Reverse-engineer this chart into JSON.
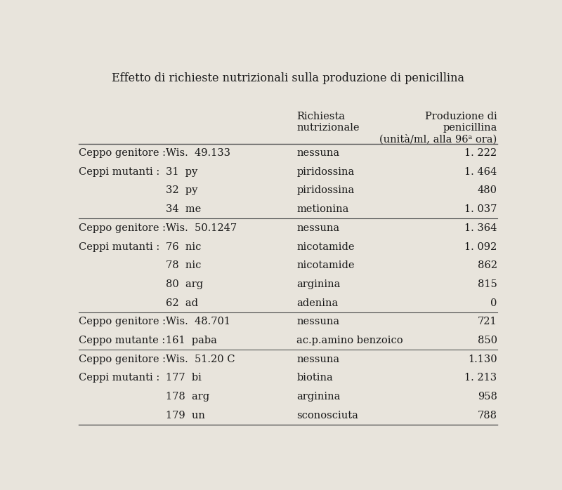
{
  "title": "Effetto di richieste nutrizionali sulla produzione di penicillina",
  "col_headers_c2": "Richiesta\nnutrizionale",
  "col_headers_c3": "Produzione di\npenicillina\n(unità/ml, alla 96ᵃ ora)",
  "rows": [
    {
      "col0": "Ceppo genitore :",
      "col1": "Wis.  49.133",
      "col2": "nessuna",
      "col3": "1. 222"
    },
    {
      "col0": "Ceppi mutanti :",
      "col1": "31  py",
      "col2": "piridossina",
      "col3": "1. 464"
    },
    {
      "col0": "",
      "col1": "32  py",
      "col2": "piridossina",
      "col3": "480"
    },
    {
      "col0": "",
      "col1": "34  me",
      "col2": "metionina",
      "col3": "1. 037"
    },
    {
      "col0": "Ceppo genitore :",
      "col1": "Wis.  50.1247",
      "col2": "nessuna",
      "col3": "1. 364"
    },
    {
      "col0": "Ceppi mutanti :",
      "col1": "76  nic",
      "col2": "nicotamide",
      "col3": "1. 092"
    },
    {
      "col0": "",
      "col1": "78  nic",
      "col2": "nicotamide",
      "col3": "862"
    },
    {
      "col0": "",
      "col1": "80  arg",
      "col2": "arginina",
      "col3": "815"
    },
    {
      "col0": "",
      "col1": "62  ad",
      "col2": "adenina",
      "col3": "0"
    },
    {
      "col0": "Ceppo genitore :",
      "col1": "Wis.  48.701",
      "col2": "nessuna",
      "col3": "721"
    },
    {
      "col0": "Ceppo mutante :",
      "col1": "161  paba",
      "col2": "ac.p.amino benzoico",
      "col3": "850"
    },
    {
      "col0": "Ceppo genitore :",
      "col1": "Wis.  51.20 C",
      "col2": "nessuna",
      "col3": "1.130"
    },
    {
      "col0": "Ceppi mutanti :",
      "col1": "177  bi",
      "col2": "biotina",
      "col3": "1. 213"
    },
    {
      "col0": "",
      "col1": "178  arg",
      "col2": "arginina",
      "col3": "958"
    },
    {
      "col0": "",
      "col1": "179  un",
      "col2": "sconosciuta",
      "col3": "788"
    }
  ],
  "section_dividers": [
    4,
    9,
    11
  ],
  "bg_color": "#e8e4dc",
  "text_color": "#1a1a1a",
  "line_color": "#555555",
  "font_size": 10.5,
  "header_font_size": 10.5,
  "title_font_size": 11.5
}
